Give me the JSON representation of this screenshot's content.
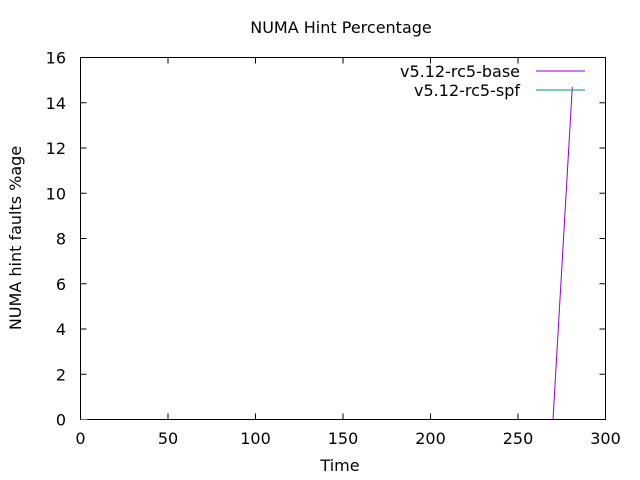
{
  "chart_data": {
    "type": "line",
    "title": "NUMA Hint Percentage",
    "xlabel": "Time",
    "ylabel": "NUMA hint faults %age",
    "xlim": [
      0,
      300
    ],
    "ylim": [
      0,
      16
    ],
    "x_ticks": [
      "0",
      "50",
      "100",
      "150",
      "200",
      "250",
      "300"
    ],
    "y_ticks": [
      "0",
      "2",
      "4",
      "6",
      "8",
      "10",
      "12",
      "14",
      "16"
    ],
    "legend_position": "top-right",
    "grid": false,
    "series": [
      {
        "name": "v5.12-rc5-base",
        "color": "#9400d3",
        "points": [
          [
            270,
            0
          ],
          [
            281,
            14.7
          ]
        ]
      },
      {
        "name": "v5.12-rc5-spf",
        "color": "#009e73",
        "points": [
          [
            0,
            0
          ],
          [
            4,
            0
          ]
        ]
      }
    ]
  }
}
